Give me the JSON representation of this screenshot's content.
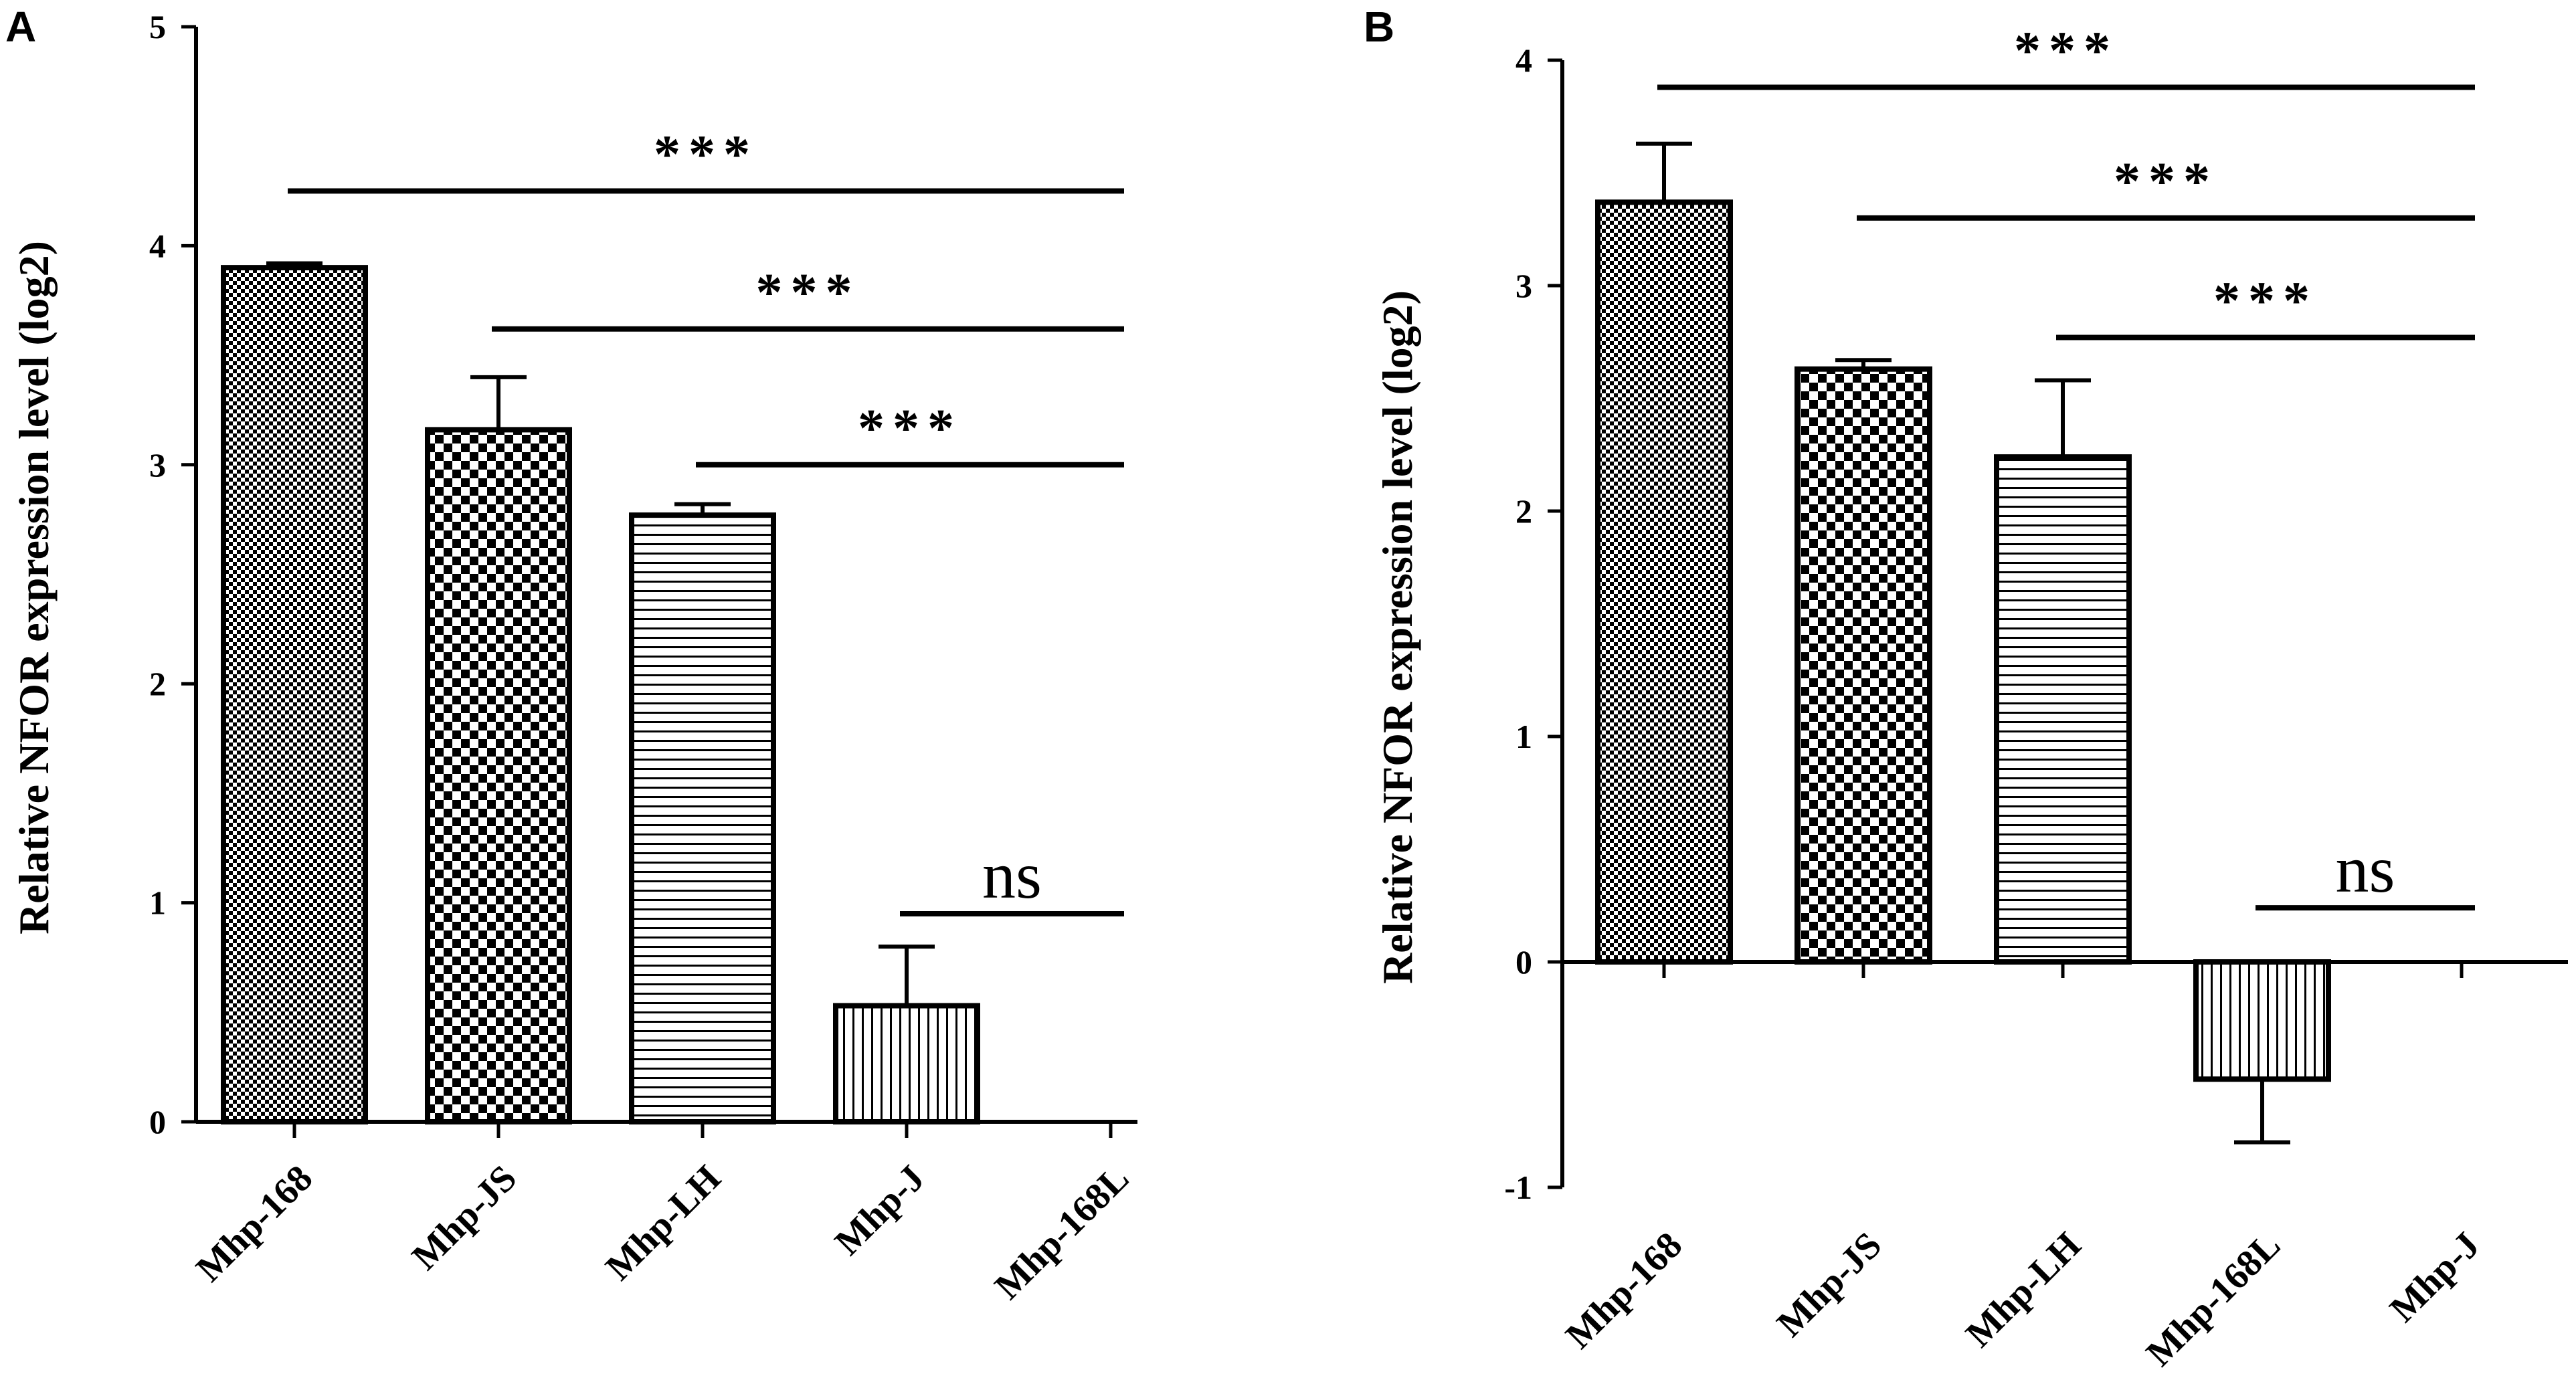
{
  "chart_data": [
    {
      "panel": "A",
      "type": "bar",
      "ylabel": "Relative NFOR expression level (log2)",
      "ylim": [
        0,
        5
      ],
      "yticks": [
        "0",
        "1",
        "2",
        "3",
        "4",
        "5"
      ],
      "categories": [
        "Mhp-168",
        "Mhp-JS",
        "Mhp-LH",
        "Mhp-J",
        "Mhp-168L"
      ],
      "values": [
        3.9,
        3.16,
        2.77,
        0.53,
        0
      ],
      "errors": [
        0.02,
        0.24,
        0.05,
        0.27,
        0
      ],
      "patterns": [
        "fine-check",
        "coarse-check",
        "horizontal",
        "vertical",
        "none"
      ],
      "significance": [
        {
          "label": "***",
          "from": "Mhp-168",
          "to": "Mhp-168L",
          "y": 4.25
        },
        {
          "label": "***",
          "from": "Mhp-JS",
          "to": "Mhp-168L",
          "y": 3.62
        },
        {
          "label": "***",
          "from": "Mhp-LH",
          "to": "Mhp-168L",
          "y": 3.0
        },
        {
          "label": "ns",
          "from": "Mhp-J",
          "to": "Mhp-168L",
          "y": 0.95
        }
      ]
    },
    {
      "panel": "B",
      "type": "bar",
      "ylabel": "Relative NFOR expression level (log2)",
      "ylim": [
        -1,
        4
      ],
      "yticks": [
        "-1",
        "0",
        "1",
        "2",
        "3",
        "4"
      ],
      "categories": [
        "Mhp-168",
        "Mhp-JS",
        "Mhp-LH",
        "Mhp-168L",
        "Mhp-J"
      ],
      "values": [
        3.37,
        2.63,
        2.24,
        -0.52,
        0
      ],
      "errors": [
        0.26,
        0.04,
        0.34,
        0.28,
        0
      ],
      "patterns": [
        "fine-check",
        "coarse-check",
        "horizontal",
        "vertical",
        "none"
      ],
      "significance": [
        {
          "label": "***",
          "from": "Mhp-168",
          "to": "Mhp-J",
          "y": 3.88
        },
        {
          "label": "***",
          "from": "Mhp-JS",
          "to": "Mhp-J",
          "y": 3.3
        },
        {
          "label": "***",
          "from": "Mhp-LH",
          "to": "Mhp-J",
          "y": 2.77
        },
        {
          "label": "ns",
          "from": "Mhp-168L",
          "to": "Mhp-J",
          "y": 0.24
        }
      ]
    }
  ]
}
